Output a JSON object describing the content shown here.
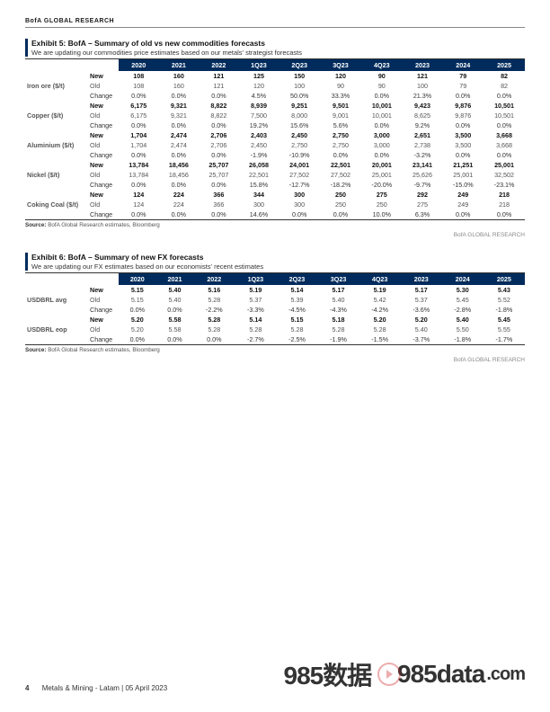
{
  "header": "BofA GLOBAL RESEARCH",
  "exhibit5": {
    "title": "Exhibit 5: BofA – Summary of old vs new commodities forecasts",
    "subtitle": "We are updating our commodities price estimates based on our metals' strategist forecasts",
    "columns": [
      "2020",
      "2021",
      "2022",
      "1Q23",
      "2Q23",
      "3Q23",
      "4Q23",
      "2023",
      "2024",
      "2025"
    ],
    "groups": [
      {
        "label": "Iron ore ($/t)",
        "rows": [
          {
            "type": "New",
            "cls": "new-row",
            "vals": [
              "108",
              "160",
              "121",
              "125",
              "150",
              "120",
              "90",
              "121",
              "79",
              "82"
            ]
          },
          {
            "type": "Old",
            "cls": "old-row",
            "vals": [
              "108",
              "160",
              "121",
              "120",
              "100",
              "90",
              "90",
              "100",
              "79",
              "82"
            ]
          },
          {
            "type": "Change",
            "cls": "change-row",
            "vals": [
              "0.0%",
              "0.0%",
              "0.0%",
              "4.5%",
              "50.0%",
              "33.3%",
              "0.0%",
              "21.3%",
              "0.0%",
              "0.0%"
            ]
          }
        ]
      },
      {
        "label": "Copper ($/t)",
        "rows": [
          {
            "type": "New",
            "cls": "new-row",
            "vals": [
              "6,175",
              "9,321",
              "8,822",
              "8,939",
              "9,251",
              "9,501",
              "10,001",
              "9,423",
              "9,876",
              "10,501"
            ]
          },
          {
            "type": "Old",
            "cls": "old-row",
            "vals": [
              "6,175",
              "9,321",
              "8,822",
              "7,500",
              "8,000",
              "9,001",
              "10,001",
              "8,625",
              "9,876",
              "10,501"
            ]
          },
          {
            "type": "Change",
            "cls": "change-row",
            "vals": [
              "0.0%",
              "0.0%",
              "0.0%",
              "19.2%",
              "15.6%",
              "5.6%",
              "0.0%",
              "9.2%",
              "0.0%",
              "0.0%"
            ]
          }
        ]
      },
      {
        "label": "Aluminium ($/t)",
        "rows": [
          {
            "type": "New",
            "cls": "new-row",
            "vals": [
              "1,704",
              "2,474",
              "2,706",
              "2,403",
              "2,450",
              "2,750",
              "3,000",
              "2,651",
              "3,500",
              "3,668"
            ]
          },
          {
            "type": "Old",
            "cls": "old-row",
            "vals": [
              "1,704",
              "2,474",
              "2,706",
              "2,450",
              "2,750",
              "2,750",
              "3,000",
              "2,738",
              "3,500",
              "3,668"
            ]
          },
          {
            "type": "Change",
            "cls": "change-row",
            "vals": [
              "0.0%",
              "0.0%",
              "0.0%",
              "-1.9%",
              "-10.9%",
              "0.0%",
              "0.0%",
              "-3.2%",
              "0.0%",
              "0.0%"
            ]
          }
        ]
      },
      {
        "label": "Nickel ($/t)",
        "rows": [
          {
            "type": "New",
            "cls": "new-row",
            "vals": [
              "13,784",
              "18,456",
              "25,707",
              "26,058",
              "24,001",
              "22,501",
              "20,001",
              "23,141",
              "21,251",
              "25,001"
            ]
          },
          {
            "type": "Old",
            "cls": "old-row",
            "vals": [
              "13,784",
              "18,456",
              "25,707",
              "22,501",
              "27,502",
              "27,502",
              "25,001",
              "25,626",
              "25,001",
              "32,502"
            ]
          },
          {
            "type": "Change",
            "cls": "change-row",
            "vals": [
              "0.0%",
              "0.0%",
              "0.0%",
              "15.8%",
              "-12.7%",
              "-18.2%",
              "-20.0%",
              "-9.7%",
              "-15.0%",
              "-23.1%"
            ]
          }
        ]
      },
      {
        "label": "Coking Coal ($/t)",
        "rows": [
          {
            "type": "New",
            "cls": "new-row",
            "vals": [
              "124",
              "224",
              "366",
              "344",
              "300",
              "250",
              "275",
              "292",
              "249",
              "218"
            ]
          },
          {
            "type": "Old",
            "cls": "old-row",
            "vals": [
              "124",
              "224",
              "366",
              "300",
              "300",
              "250",
              "250",
              "275",
              "249",
              "218"
            ]
          },
          {
            "type": "Change",
            "cls": "change-row",
            "vals": [
              "0.0%",
              "0.0%",
              "0.0%",
              "14.6%",
              "0.0%",
              "0.0%",
              "10.0%",
              "6.3%",
              "0.0%",
              "0.0%"
            ]
          }
        ]
      }
    ],
    "source": "BofA Global Research estimates, Bloomberg",
    "attribution": "BofA GLOBAL RESEARCH"
  },
  "exhibit6": {
    "title": "Exhibit 6: BofA – Summary of new FX forecasts",
    "subtitle": "We are updating our FX estimates based on our economists' recent estimates",
    "columns": [
      "2020",
      "2021",
      "2022",
      "1Q23",
      "2Q23",
      "3Q23",
      "4Q23",
      "2023",
      "2024",
      "2025"
    ],
    "groups": [
      {
        "label": "USDBRL avg",
        "rows": [
          {
            "type": "New",
            "cls": "new-row",
            "vals": [
              "5.15",
              "5.40",
              "5.16",
              "5.19",
              "5.14",
              "5.17",
              "5.19",
              "5.17",
              "5.30",
              "5.43"
            ]
          },
          {
            "type": "Old",
            "cls": "old-row",
            "vals": [
              "5.15",
              "5.40",
              "5.28",
              "5.37",
              "5.39",
              "5.40",
              "5.42",
              "5.37",
              "5.45",
              "5.52"
            ]
          },
          {
            "type": "Change",
            "cls": "change-row",
            "vals": [
              "0.0%",
              "0.0%",
              "-2.2%",
              "-3.3%",
              "-4.5%",
              "-4.3%",
              "-4.2%",
              "-3.6%",
              "-2.8%",
              "-1.8%"
            ]
          }
        ]
      },
      {
        "label": "USDBRL eop",
        "rows": [
          {
            "type": "New",
            "cls": "new-row",
            "vals": [
              "5.20",
              "5.58",
              "5.28",
              "5.14",
              "5.15",
              "5.18",
              "5.20",
              "5.20",
              "5.40",
              "5.45"
            ]
          },
          {
            "type": "Old",
            "cls": "old-row",
            "vals": [
              "5.20",
              "5.58",
              "5.28",
              "5.28",
              "5.28",
              "5.28",
              "5.28",
              "5.40",
              "5.50",
              "5.55"
            ]
          },
          {
            "type": "Change",
            "cls": "change-row",
            "vals": [
              "0.0%",
              "0.0%",
              "0.0%",
              "-2.7%",
              "-2.5%",
              "-1.9%",
              "-1.5%",
              "-3.7%",
              "-1.8%",
              "-1.7%"
            ]
          }
        ]
      }
    ],
    "source": "BofA Global Research estimates, Bloomberg",
    "attribution": "BofA GLOBAL RESEARCH"
  },
  "footer": {
    "pagenum": "4",
    "doc": "Metals & Mining - Latam | 05 April 2023",
    "watermark1": "985数据",
    "watermark2": "985data",
    "watermark3": ".com"
  }
}
